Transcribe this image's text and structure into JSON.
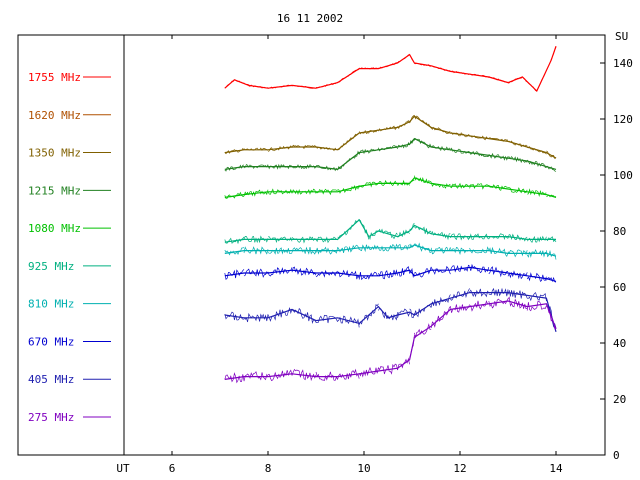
{
  "chart_data": {
    "type": "line",
    "title": "16 11 2002",
    "xlabel": "UT",
    "ylabel": "SU",
    "xlim": [
      5,
      14.9
    ],
    "ylim": [
      0,
      150
    ],
    "x_ticks": [
      6,
      8,
      10,
      12,
      14
    ],
    "y_ticks": [
      0,
      20,
      40,
      60,
      80,
      100,
      120,
      140
    ],
    "grid": false,
    "legend_position": "left",
    "series": [
      {
        "name": "1755 MHz",
        "color": "#ff0000",
        "x": [
          7.1,
          7.3,
          7.6,
          8.0,
          8.5,
          9.0,
          9.45,
          9.9,
          10.3,
          10.7,
          10.95,
          11.05,
          11.4,
          11.8,
          12.2,
          12.6,
          13.0,
          13.3,
          13.6,
          13.9,
          14.0
        ],
        "values": [
          131,
          134,
          132,
          131,
          132,
          131,
          133,
          138,
          138,
          140,
          143,
          140,
          139,
          137,
          136,
          135,
          133,
          135,
          130,
          141,
          146
        ]
      },
      {
        "name": "1620 MHz",
        "color": "#b05000",
        "x": [
          7.1,
          7.3,
          7.6,
          8.0,
          8.5,
          9.0,
          9.45,
          9.9,
          10.3,
          10.7,
          10.95,
          11.05,
          11.4,
          11.8,
          12.2,
          12.6,
          13.0,
          13.3,
          13.6,
          13.9,
          14.0
        ],
        "values": [
          null,
          null,
          null,
          null,
          null,
          null,
          null,
          null,
          null,
          null,
          null,
          null,
          null,
          null,
          null,
          null,
          null,
          null,
          null,
          null,
          null
        ]
      },
      {
        "name": "1350 MHz",
        "color": "#806000",
        "x": [
          7.1,
          7.5,
          8.0,
          8.5,
          9.0,
          9.45,
          9.9,
          10.3,
          10.7,
          10.95,
          11.05,
          11.4,
          11.8,
          12.2,
          12.6,
          13.0,
          13.4,
          13.8,
          14.0
        ],
        "values": [
          108,
          109,
          109,
          110,
          110,
          109,
          115,
          116,
          117,
          119,
          121,
          117,
          115,
          114,
          113,
          112,
          110,
          108,
          106
        ]
      },
      {
        "name": "1215 MHz",
        "color": "#208020",
        "x": [
          7.1,
          7.5,
          8.0,
          8.5,
          9.0,
          9.45,
          9.9,
          10.3,
          10.7,
          10.95,
          11.05,
          11.4,
          11.8,
          12.2,
          12.6,
          13.0,
          13.4,
          13.8,
          14.0
        ],
        "values": [
          102,
          103,
          103,
          103,
          103,
          102,
          108,
          109,
          110,
          111,
          113,
          110,
          109,
          108,
          107,
          106,
          105,
          103,
          102
        ]
      },
      {
        "name": "1080 MHz",
        "color": "#00c000",
        "x": [
          7.1,
          7.5,
          8.0,
          8.5,
          9.0,
          9.45,
          9.9,
          10.3,
          10.7,
          10.95,
          11.05,
          11.4,
          11.8,
          12.2,
          12.6,
          13.0,
          13.4,
          13.8,
          14.0
        ],
        "values": [
          92,
          93,
          94,
          94,
          94,
          94,
          96,
          97,
          97,
          97,
          99,
          97,
          96,
          96,
          96,
          95,
          94,
          93,
          92
        ]
      },
      {
        "name": "925 MHz",
        "color": "#00b080",
        "x": [
          7.1,
          7.5,
          8.0,
          8.5,
          9.0,
          9.45,
          9.9,
          10.1,
          10.3,
          10.7,
          10.95,
          11.05,
          11.4,
          11.8,
          12.2,
          12.6,
          13.0,
          13.4,
          13.8,
          14.0
        ],
        "values": [
          76,
          77,
          77,
          77,
          77,
          77,
          84,
          78,
          80,
          78,
          80,
          82,
          79,
          78,
          78,
          78,
          78,
          77,
          77,
          77
        ]
      },
      {
        "name": "810 MHz",
        "color": "#00b0b0",
        "x": [
          7.1,
          7.5,
          8.0,
          8.5,
          9.0,
          9.45,
          9.9,
          10.3,
          10.7,
          10.95,
          11.05,
          11.4,
          11.8,
          12.2,
          12.6,
          13.0,
          13.4,
          13.8,
          14.0
        ],
        "values": [
          72,
          73,
          73,
          73,
          73,
          73,
          74,
          74,
          74,
          74,
          75,
          73,
          73,
          73,
          73,
          72,
          72,
          72,
          71
        ]
      },
      {
        "name": "670 MHz",
        "color": "#0000d0",
        "x": [
          7.1,
          7.5,
          8.0,
          8.5,
          9.0,
          9.45,
          9.9,
          10.3,
          10.7,
          10.95,
          11.05,
          11.4,
          11.8,
          12.2,
          12.6,
          13.0,
          13.4,
          13.8,
          14.0
        ],
        "values": [
          64,
          65,
          65,
          66,
          65,
          65,
          64,
          64,
          65,
          66,
          64,
          66,
          66,
          67,
          66,
          65,
          64,
          63,
          62
        ]
      },
      {
        "name": "405 MHz",
        "color": "#2020b0",
        "x": [
          7.1,
          7.5,
          8.0,
          8.5,
          9.0,
          9.45,
          9.9,
          10.3,
          10.5,
          10.7,
          10.95,
          11.05,
          11.4,
          11.8,
          12.2,
          12.6,
          13.0,
          13.4,
          13.8,
          14.0
        ],
        "values": [
          50,
          49,
          49,
          52,
          48,
          49,
          47,
          53,
          49,
          50,
          51,
          50,
          54,
          56,
          58,
          58,
          58,
          57,
          56,
          44
        ]
      },
      {
        "name": "275 MHz",
        "color": "#8000c0",
        "x": [
          7.1,
          7.5,
          8.0,
          8.5,
          9.0,
          9.45,
          9.9,
          10.3,
          10.7,
          10.95,
          11.05,
          11.4,
          11.8,
          12.2,
          12.6,
          13.0,
          13.4,
          13.8,
          14.0
        ],
        "values": [
          27,
          28,
          28,
          29,
          28,
          28,
          29,
          30,
          31,
          34,
          42,
          46,
          52,
          53,
          54,
          55,
          53,
          54,
          45
        ]
      }
    ]
  }
}
